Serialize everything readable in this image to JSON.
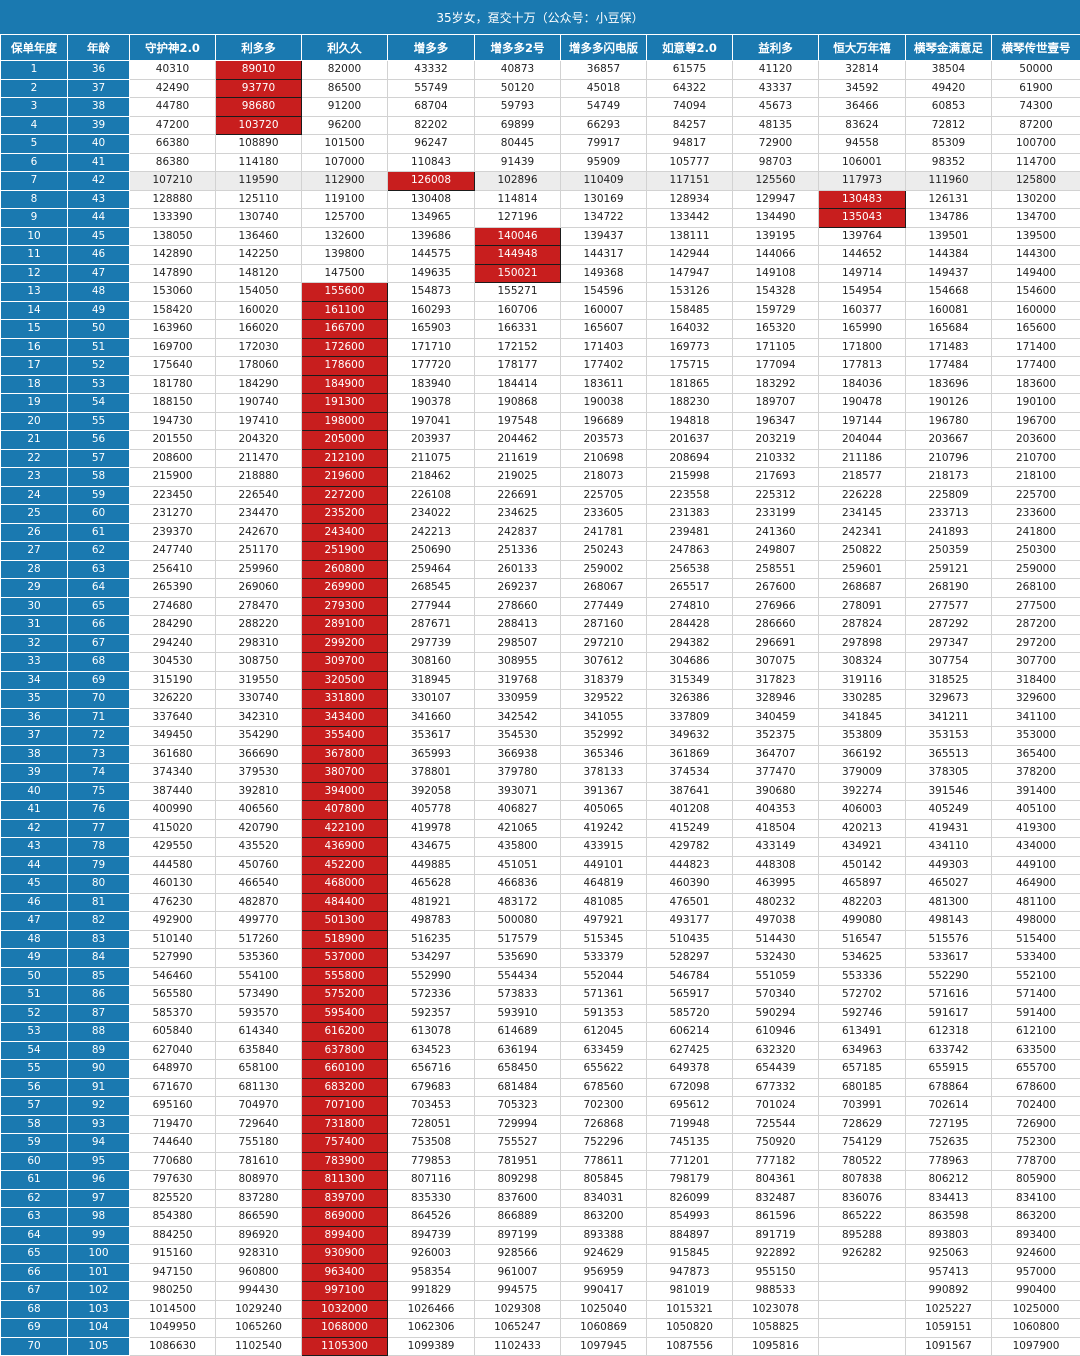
{
  "title": "35岁女，趸交十万（公众号：小豆保）",
  "headers": [
    "保单年度",
    "年龄",
    "守护神2.0",
    "利多多",
    "利久久",
    "增多多",
    "增多多2号",
    "增多多闪电版",
    "如意尊2.0",
    "益利多",
    "恒大万年禧",
    "横琴金满意足",
    "横琴传世壹号"
  ],
  "colors": {
    "header": "#1a79b0",
    "highlight": "#c81e1e",
    "row_highlight": "#ececec"
  },
  "highlight_row": 7,
  "rows": [
    [
      "1",
      "36",
      "40310",
      "89010",
      "82000",
      "43332",
      "40873",
      "36857",
      "61575",
      "41120",
      "32814",
      "38504",
      "50000"
    ],
    [
      "2",
      "37",
      "42490",
      "93770",
      "86500",
      "55749",
      "50120",
      "45018",
      "64322",
      "43337",
      "34592",
      "49420",
      "61900"
    ],
    [
      "3",
      "38",
      "44780",
      "98680",
      "91200",
      "68704",
      "59793",
      "54749",
      "74094",
      "45673",
      "36466",
      "60853",
      "74300"
    ],
    [
      "4",
      "39",
      "47200",
      "103720",
      "96200",
      "82202",
      "69899",
      "66293",
      "84257",
      "48135",
      "83624",
      "72812",
      "87200"
    ],
    [
      "5",
      "40",
      "66380",
      "108890",
      "101500",
      "96247",
      "80445",
      "79917",
      "94817",
      "72900",
      "94558",
      "85309",
      "100700"
    ],
    [
      "6",
      "41",
      "86380",
      "114180",
      "107000",
      "110843",
      "91439",
      "95909",
      "105777",
      "98703",
      "106001",
      "98352",
      "114700"
    ],
    [
      "7",
      "42",
      "107210",
      "119590",
      "112900",
      "126008",
      "102896",
      "110409",
      "117151",
      "125560",
      "117973",
      "111960",
      "125800"
    ],
    [
      "8",
      "43",
      "128880",
      "125110",
      "119100",
      "130408",
      "114814",
      "130169",
      "128934",
      "129947",
      "130483",
      "126131",
      "130200"
    ],
    [
      "9",
      "44",
      "133390",
      "130740",
      "125700",
      "134965",
      "127196",
      "134722",
      "133442",
      "134490",
      "135043",
      "134786",
      "134700"
    ],
    [
      "10",
      "45",
      "138050",
      "136460",
      "132600",
      "139686",
      "140046",
      "139437",
      "138111",
      "139195",
      "139764",
      "139501",
      "139500"
    ],
    [
      "11",
      "46",
      "142890",
      "142250",
      "139800",
      "144575",
      "144948",
      "144317",
      "142944",
      "144066",
      "144652",
      "144384",
      "144300"
    ],
    [
      "12",
      "47",
      "147890",
      "148120",
      "147500",
      "149635",
      "150021",
      "149368",
      "147947",
      "149108",
      "149714",
      "149437",
      "149400"
    ],
    [
      "13",
      "48",
      "153060",
      "154050",
      "155600",
      "154873",
      "155271",
      "154596",
      "153126",
      "154328",
      "154954",
      "154668",
      "154600"
    ],
    [
      "14",
      "49",
      "158420",
      "160020",
      "161100",
      "160293",
      "160706",
      "160007",
      "158485",
      "159729",
      "160377",
      "160081",
      "160000"
    ],
    [
      "15",
      "50",
      "163960",
      "166020",
      "166700",
      "165903",
      "166331",
      "165607",
      "164032",
      "165320",
      "165990",
      "165684",
      "165600"
    ],
    [
      "16",
      "51",
      "169700",
      "172030",
      "172600",
      "171710",
      "172152",
      "171403",
      "169773",
      "171105",
      "171800",
      "171483",
      "171400"
    ],
    [
      "17",
      "52",
      "175640",
      "178060",
      "178600",
      "177720",
      "178177",
      "177402",
      "175715",
      "177094",
      "177813",
      "177484",
      "177400"
    ],
    [
      "18",
      "53",
      "181780",
      "184290",
      "184900",
      "183940",
      "184414",
      "183611",
      "181865",
      "183292",
      "184036",
      "183696",
      "183600"
    ],
    [
      "19",
      "54",
      "188150",
      "190740",
      "191300",
      "190378",
      "190868",
      "190038",
      "188230",
      "189707",
      "190478",
      "190126",
      "190100"
    ],
    [
      "20",
      "55",
      "194730",
      "197410",
      "198000",
      "197041",
      "197548",
      "196689",
      "194818",
      "196347",
      "197144",
      "196780",
      "196700"
    ],
    [
      "21",
      "56",
      "201550",
      "204320",
      "205000",
      "203937",
      "204462",
      "203573",
      "201637",
      "203219",
      "204044",
      "203667",
      "203600"
    ],
    [
      "22",
      "57",
      "208600",
      "211470",
      "212100",
      "211075",
      "211619",
      "210698",
      "208694",
      "210332",
      "211186",
      "210796",
      "210700"
    ],
    [
      "23",
      "58",
      "215900",
      "218880",
      "219600",
      "218462",
      "219025",
      "218073",
      "215998",
      "217693",
      "218577",
      "218173",
      "218100"
    ],
    [
      "24",
      "59",
      "223450",
      "226540",
      "227200",
      "226108",
      "226691",
      "225705",
      "223558",
      "225312",
      "226228",
      "225809",
      "225700"
    ],
    [
      "25",
      "60",
      "231270",
      "234470",
      "235200",
      "234022",
      "234625",
      "233605",
      "231383",
      "233199",
      "234145",
      "233713",
      "233600"
    ],
    [
      "26",
      "61",
      "239370",
      "242670",
      "243400",
      "242213",
      "242837",
      "241781",
      "239481",
      "241360",
      "242341",
      "241893",
      "241800"
    ],
    [
      "27",
      "62",
      "247740",
      "251170",
      "251900",
      "250690",
      "251336",
      "250243",
      "247863",
      "249807",
      "250822",
      "250359",
      "250300"
    ],
    [
      "28",
      "63",
      "256410",
      "259960",
      "260800",
      "259464",
      "260133",
      "259002",
      "256538",
      "258551",
      "259601",
      "259121",
      "259000"
    ],
    [
      "29",
      "64",
      "265390",
      "269060",
      "269900",
      "268545",
      "269237",
      "268067",
      "265517",
      "267600",
      "268687",
      "268190",
      "268100"
    ],
    [
      "30",
      "65",
      "274680",
      "278470",
      "279300",
      "277944",
      "278660",
      "277449",
      "274810",
      "276966",
      "278091",
      "277577",
      "277500"
    ],
    [
      "31",
      "66",
      "284290",
      "288220",
      "289100",
      "287671",
      "288413",
      "287160",
      "284428",
      "286660",
      "287824",
      "287292",
      "287200"
    ],
    [
      "32",
      "67",
      "294240",
      "298310",
      "299200",
      "297739",
      "298507",
      "297210",
      "294382",
      "296691",
      "297898",
      "297347",
      "297200"
    ],
    [
      "33",
      "68",
      "304530",
      "308750",
      "309700",
      "308160",
      "308955",
      "307612",
      "304686",
      "307075",
      "308324",
      "307754",
      "307700"
    ],
    [
      "34",
      "69",
      "315190",
      "319550",
      "320500",
      "318945",
      "319768",
      "318379",
      "315349",
      "317823",
      "319116",
      "318525",
      "318400"
    ],
    [
      "35",
      "70",
      "326220",
      "330740",
      "331800",
      "330107",
      "330959",
      "329522",
      "326386",
      "328946",
      "330285",
      "329673",
      "329600"
    ],
    [
      "36",
      "71",
      "337640",
      "342310",
      "343400",
      "341660",
      "342542",
      "341055",
      "337809",
      "340459",
      "341845",
      "341211",
      "341100"
    ],
    [
      "37",
      "72",
      "349450",
      "354290",
      "355400",
      "353617",
      "354530",
      "352992",
      "349632",
      "352375",
      "353809",
      "353153",
      "353000"
    ],
    [
      "38",
      "73",
      "361680",
      "366690",
      "367800",
      "365993",
      "366938",
      "365346",
      "361869",
      "364707",
      "366192",
      "365513",
      "365400"
    ],
    [
      "39",
      "74",
      "374340",
      "379530",
      "380700",
      "378801",
      "379780",
      "378133",
      "374534",
      "377470",
      "379009",
      "378305",
      "378200"
    ],
    [
      "40",
      "75",
      "387440",
      "392810",
      "394000",
      "392058",
      "393071",
      "391367",
      "387641",
      "390680",
      "392274",
      "391546",
      "391400"
    ],
    [
      "41",
      "76",
      "400990",
      "406560",
      "407800",
      "405778",
      "406827",
      "405065",
      "401208",
      "404353",
      "406003",
      "405249",
      "405100"
    ],
    [
      "42",
      "77",
      "415020",
      "420790",
      "422100",
      "419978",
      "421065",
      "419242",
      "415249",
      "418504",
      "420213",
      "419431",
      "419300"
    ],
    [
      "43",
      "78",
      "429550",
      "435520",
      "436900",
      "434675",
      "435800",
      "433915",
      "429782",
      "433149",
      "434921",
      "434110",
      "434000"
    ],
    [
      "44",
      "79",
      "444580",
      "450760",
      "452200",
      "449885",
      "451051",
      "449101",
      "444823",
      "448308",
      "450142",
      "449303",
      "449100"
    ],
    [
      "45",
      "80",
      "460130",
      "466540",
      "468000",
      "465628",
      "466836",
      "464819",
      "460390",
      "463995",
      "465897",
      "465027",
      "464900"
    ],
    [
      "46",
      "81",
      "476230",
      "482870",
      "484400",
      "481921",
      "483172",
      "481085",
      "476501",
      "480232",
      "482203",
      "481300",
      "481100"
    ],
    [
      "47",
      "82",
      "492900",
      "499770",
      "501300",
      "498783",
      "500080",
      "497921",
      "493177",
      "497038",
      "499080",
      "498143",
      "498000"
    ],
    [
      "48",
      "83",
      "510140",
      "517260",
      "518900",
      "516235",
      "517579",
      "515345",
      "510435",
      "514430",
      "516547",
      "515576",
      "515400"
    ],
    [
      "49",
      "84",
      "527990",
      "535360",
      "537000",
      "534297",
      "535690",
      "533379",
      "528297",
      "532430",
      "534625",
      "533617",
      "533400"
    ],
    [
      "50",
      "85",
      "546460",
      "554100",
      "555800",
      "552990",
      "554434",
      "552044",
      "546784",
      "551059",
      "553336",
      "552290",
      "552100"
    ],
    [
      "51",
      "86",
      "565580",
      "573490",
      "575200",
      "572336",
      "573833",
      "571361",
      "565917",
      "570340",
      "572702",
      "571616",
      "571400"
    ],
    [
      "52",
      "87",
      "585370",
      "593570",
      "595400",
      "592357",
      "593910",
      "591353",
      "585720",
      "590294",
      "592746",
      "591617",
      "591400"
    ],
    [
      "53",
      "88",
      "605840",
      "614340",
      "616200",
      "613078",
      "614689",
      "612045",
      "606214",
      "610946",
      "613491",
      "612318",
      "612100"
    ],
    [
      "54",
      "89",
      "627040",
      "635840",
      "637800",
      "634523",
      "636194",
      "633459",
      "627425",
      "632320",
      "634963",
      "633742",
      "633500"
    ],
    [
      "55",
      "90",
      "648970",
      "658100",
      "660100",
      "656716",
      "658450",
      "655622",
      "649378",
      "654439",
      "657185",
      "655915",
      "655700"
    ],
    [
      "56",
      "91",
      "671670",
      "681130",
      "683200",
      "679683",
      "681484",
      "678560",
      "672098",
      "677332",
      "680185",
      "678864",
      "678600"
    ],
    [
      "57",
      "92",
      "695160",
      "704970",
      "707100",
      "703453",
      "705323",
      "702300",
      "695612",
      "701024",
      "703991",
      "702614",
      "702400"
    ],
    [
      "58",
      "93",
      "719470",
      "729640",
      "731800",
      "728051",
      "729994",
      "726868",
      "719948",
      "725544",
      "728629",
      "727195",
      "726900"
    ],
    [
      "59",
      "94",
      "744640",
      "755180",
      "757400",
      "753508",
      "755527",
      "752296",
      "745135",
      "750920",
      "754129",
      "752635",
      "752300"
    ],
    [
      "60",
      "95",
      "770680",
      "781610",
      "783900",
      "779853",
      "781951",
      "778611",
      "771201",
      "777182",
      "780522",
      "778963",
      "778700"
    ],
    [
      "61",
      "96",
      "797630",
      "808970",
      "811300",
      "807116",
      "809298",
      "805845",
      "798179",
      "804361",
      "807838",
      "806212",
      "805900"
    ],
    [
      "62",
      "97",
      "825520",
      "837280",
      "839700",
      "835330",
      "837600",
      "834031",
      "826099",
      "832487",
      "836076",
      "834413",
      "834100"
    ],
    [
      "63",
      "98",
      "854380",
      "866590",
      "869000",
      "864526",
      "866889",
      "863200",
      "854993",
      "861596",
      "865222",
      "863598",
      "863200"
    ],
    [
      "64",
      "99",
      "884250",
      "896920",
      "899400",
      "894739",
      "897199",
      "893388",
      "884897",
      "891719",
      "895288",
      "893803",
      "893400"
    ],
    [
      "65",
      "100",
      "915160",
      "928310",
      "930900",
      "926003",
      "928566",
      "924629",
      "915845",
      "922892",
      "926282",
      "925063",
      "924600"
    ],
    [
      "66",
      "101",
      "947150",
      "960800",
      "963400",
      "958354",
      "961007",
      "956959",
      "947873",
      "955150",
      "",
      "957413",
      "957000"
    ],
    [
      "67",
      "102",
      "980250",
      "994430",
      "997100",
      "991829",
      "994575",
      "990417",
      "981019",
      "988533",
      "",
      "990892",
      "990400"
    ],
    [
      "68",
      "103",
      "1014500",
      "1029240",
      "1032000",
      "1026466",
      "1029308",
      "1025040",
      "1015321",
      "1023078",
      "",
      "1025227",
      "1025000"
    ],
    [
      "69",
      "104",
      "1049950",
      "1065260",
      "1068000",
      "1062306",
      "1065247",
      "1060869",
      "1050820",
      "1058825",
      "",
      "1059151",
      "1060800"
    ],
    [
      "70",
      "105",
      "1086630",
      "1102540",
      "1105300",
      "1099389",
      "1102433",
      "1097945",
      "1087556",
      "1095816",
      "",
      "1091567",
      "1097900"
    ]
  ],
  "red_cells": {
    "3": [
      1,
      2,
      3,
      4
    ],
    "4": [
      13,
      14,
      15,
      16,
      17,
      18,
      19,
      20,
      21,
      22,
      23,
      24,
      25,
      26,
      27,
      28,
      29,
      30,
      31,
      32,
      33,
      34,
      35,
      36,
      37,
      38,
      39,
      40,
      41,
      42,
      43,
      44,
      45,
      46,
      47,
      48,
      49,
      50,
      51,
      52,
      53,
      54,
      55,
      56,
      57,
      58,
      59,
      60,
      61,
      62,
      63,
      64,
      65,
      66,
      67,
      68,
      69,
      70
    ],
    "5": [
      7
    ],
    "6": [
      10,
      11,
      12
    ],
    "10": [
      8,
      9
    ]
  }
}
